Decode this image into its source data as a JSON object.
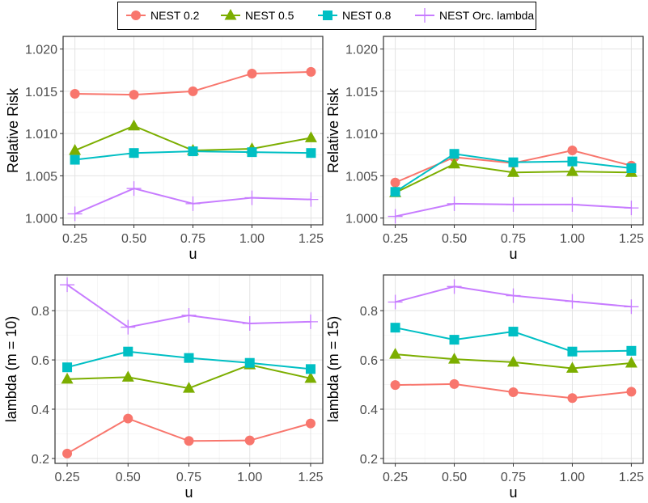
{
  "legend": {
    "entries": [
      {
        "label": "NEST 0.2",
        "color": "#F8766D",
        "shape": "circle"
      },
      {
        "label": "NEST 0.5",
        "color": "#7CAE00",
        "shape": "triangle"
      },
      {
        "label": "NEST 0.8",
        "color": "#00BFC4",
        "shape": "square"
      },
      {
        "label": "NEST Orc. lambda",
        "color": "#C77CFF",
        "shape": "plus"
      }
    ]
  },
  "chart_data": [
    {
      "type": "line",
      "xlabel": "u",
      "ylabel": "Relative Risk",
      "x": [
        0.25,
        0.5,
        0.75,
        1.0,
        1.25
      ],
      "xticks": [
        "0.25",
        "0.50",
        "0.75",
        "1.00",
        "1.25"
      ],
      "xlim": [
        0.2,
        1.3
      ],
      "ylim": [
        0.9992,
        1.0215
      ],
      "yticks": [
        1.0,
        1.005,
        1.01,
        1.015,
        1.02
      ],
      "yticklabels": [
        "1.000",
        "1.005",
        "1.010",
        "1.015",
        "1.020"
      ],
      "grid": true,
      "series": [
        {
          "name": "NEST 0.2",
          "values": [
            1.0147,
            1.0146,
            1.015,
            1.0171,
            1.0173
          ]
        },
        {
          "name": "NEST 0.5",
          "values": [
            1.008,
            1.0109,
            1.008,
            1.0082,
            1.0095
          ]
        },
        {
          "name": "NEST 0.8",
          "values": [
            1.0069,
            1.0077,
            1.0079,
            1.0078,
            1.0077
          ]
        },
        {
          "name": "NEST Orc. lambda",
          "values": [
            1.0005,
            1.0035,
            1.0017,
            1.0024,
            1.0022
          ]
        }
      ]
    },
    {
      "type": "line",
      "xlabel": "u",
      "ylabel": "Relative Risk",
      "x": [
        0.25,
        0.5,
        0.75,
        1.0,
        1.25
      ],
      "xticks": [
        "0.25",
        "0.50",
        "0.75",
        "1.00",
        "1.25"
      ],
      "xlim": [
        0.2,
        1.3
      ],
      "ylim": [
        0.9992,
        1.0215
      ],
      "yticks": [
        1.0,
        1.005,
        1.01,
        1.015,
        1.02
      ],
      "yticklabels": [
        "1.000",
        "1.005",
        "1.010",
        "1.015",
        "1.020"
      ],
      "grid": true,
      "series": [
        {
          "name": "NEST 0.2",
          "values": [
            1.0042,
            1.0072,
            1.0065,
            1.008,
            1.0062
          ]
        },
        {
          "name": "NEST 0.5",
          "values": [
            1.003,
            1.0064,
            1.0054,
            1.0055,
            1.0054
          ]
        },
        {
          "name": "NEST 0.8",
          "values": [
            1.0031,
            1.0076,
            1.0066,
            1.0067,
            1.0059
          ]
        },
        {
          "name": "NEST Orc. lambda",
          "values": [
            1.0002,
            1.0017,
            1.0016,
            1.0016,
            1.0012
          ]
        }
      ]
    },
    {
      "type": "line",
      "xlabel": "u",
      "ylabel": "lambda (m = 10)",
      "x": [
        0.25,
        0.5,
        0.75,
        1.0,
        1.25
      ],
      "xticks": [
        "0.25",
        "0.50",
        "0.75",
        "1.00",
        "1.25"
      ],
      "xlim": [
        0.2,
        1.3
      ],
      "ylim": [
        0.18,
        0.945
      ],
      "yticks": [
        0.2,
        0.4,
        0.6,
        0.8
      ],
      "yticklabels": [
        "0.2",
        "0.4",
        "0.6",
        "0.8"
      ],
      "grid": true,
      "series": [
        {
          "name": "NEST 0.2",
          "values": [
            0.22,
            0.362,
            0.271,
            0.273,
            0.342
          ]
        },
        {
          "name": "NEST 0.5",
          "values": [
            0.522,
            0.53,
            0.485,
            0.58,
            0.525
          ]
        },
        {
          "name": "NEST 0.8",
          "values": [
            0.57,
            0.634,
            0.608,
            0.588,
            0.563
          ]
        },
        {
          "name": "NEST Orc. lambda",
          "values": [
            0.905,
            0.733,
            0.781,
            0.748,
            0.755
          ]
        }
      ]
    },
    {
      "type": "line",
      "xlabel": "u",
      "ylabel": "lambda (m = 15)",
      "x": [
        0.25,
        0.5,
        0.75,
        1.0,
        1.25
      ],
      "xticks": [
        "0.25",
        "0.50",
        "0.75",
        "1.00",
        "1.25"
      ],
      "xlim": [
        0.2,
        1.3
      ],
      "ylim": [
        0.18,
        0.945
      ],
      "yticks": [
        0.2,
        0.4,
        0.6,
        0.8
      ],
      "yticklabels": [
        "0.2",
        "0.4",
        "0.6",
        "0.8"
      ],
      "grid": true,
      "series": [
        {
          "name": "NEST 0.2",
          "values": [
            0.498,
            0.502,
            0.469,
            0.445,
            0.471
          ]
        },
        {
          "name": "NEST 0.5",
          "values": [
            0.623,
            0.603,
            0.591,
            0.566,
            0.587
          ]
        },
        {
          "name": "NEST 0.8",
          "values": [
            0.731,
            0.682,
            0.715,
            0.634,
            0.637
          ]
        },
        {
          "name": "NEST Orc. lambda",
          "values": [
            0.835,
            0.898,
            0.861,
            0.838,
            0.816
          ]
        }
      ]
    }
  ]
}
